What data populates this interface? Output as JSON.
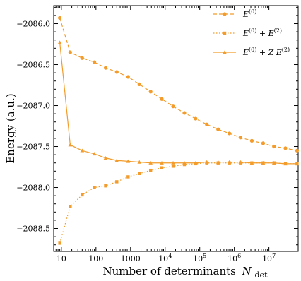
{
  "chart_data": {
    "type": "line",
    "xlabel": "Number of determinants",
    "xlabel_symbol": "N",
    "xlabel_subscript": "det",
    "ylabel": "Energy (a.u.)",
    "x_scale": "log",
    "xlim": [
      6,
      70000000
    ],
    "ylim": [
      -2088.78,
      -2085.78
    ],
    "x_ticks": [
      10,
      100,
      1000,
      10000,
      100000,
      1000000,
      10000000
    ],
    "x_tick_labels": [
      "10",
      "100",
      "1000",
      "10^4",
      "10^5",
      "10^6",
      "10^7"
    ],
    "y_ticks": [
      -2086.0,
      -2086.5,
      -2087.0,
      -2087.5,
      -2088.0,
      -2088.5
    ],
    "y_tick_labels": [
      "−2086.0",
      "−2086.5",
      "−2087.0",
      "−2087.5",
      "−2088.0",
      "−2088.5"
    ],
    "legend_position": "top-right",
    "grid": false,
    "color": "#f39c2b",
    "x": [
      9,
      18,
      40,
      90,
      190,
      400,
      850,
      1800,
      3800,
      8000,
      17000,
      36000,
      76000,
      160000,
      340000,
      720000,
      1500000,
      3200000,
      6800000,
      14000000,
      30000000,
      65000000
    ],
    "series": [
      {
        "name": "E(0)",
        "name_base": "E",
        "name_sup": "(0)",
        "style": "dashed",
        "marker": "circle",
        "values": [
          -2085.93,
          -2086.35,
          -2086.42,
          -2086.47,
          -2086.54,
          -2086.59,
          -2086.65,
          -2086.74,
          -2086.83,
          -2086.92,
          -2087.01,
          -2087.09,
          -2087.16,
          -2087.23,
          -2087.29,
          -2087.34,
          -2087.39,
          -2087.43,
          -2087.46,
          -2087.5,
          -2087.52,
          -2087.55
        ]
      },
      {
        "name": "E(0) + E(2)",
        "name_base": "E",
        "name_sup": "(0)",
        "name_mid": " + E",
        "name_sup2": "(2)",
        "style": "dotted",
        "marker": "square",
        "values": [
          -2088.68,
          -2088.23,
          -2088.09,
          -2088.0,
          -2087.98,
          -2087.93,
          -2087.87,
          -2087.83,
          -2087.79,
          -2087.76,
          -2087.74,
          -2087.72,
          -2087.71,
          -2087.7,
          -2087.7,
          -2087.7,
          -2087.7,
          -2087.7,
          -2087.7,
          -2087.7,
          -2087.71,
          -2087.71
        ]
      },
      {
        "name": "E(0) + Z E(2)",
        "name_base": "E",
        "name_sup": "(0)",
        "name_mid": " + Z E",
        "name_sup2": "(2)",
        "style": "solid",
        "marker": "triangle",
        "values": [
          -2086.23,
          -2087.48,
          -2087.55,
          -2087.59,
          -2087.64,
          -2087.67,
          -2087.68,
          -2087.69,
          -2087.7,
          -2087.7,
          -2087.7,
          -2087.7,
          -2087.7,
          -2087.69,
          -2087.69,
          -2087.69,
          -2087.69,
          -2087.7,
          -2087.7,
          -2087.7,
          -2087.71,
          -2087.71
        ]
      }
    ]
  }
}
